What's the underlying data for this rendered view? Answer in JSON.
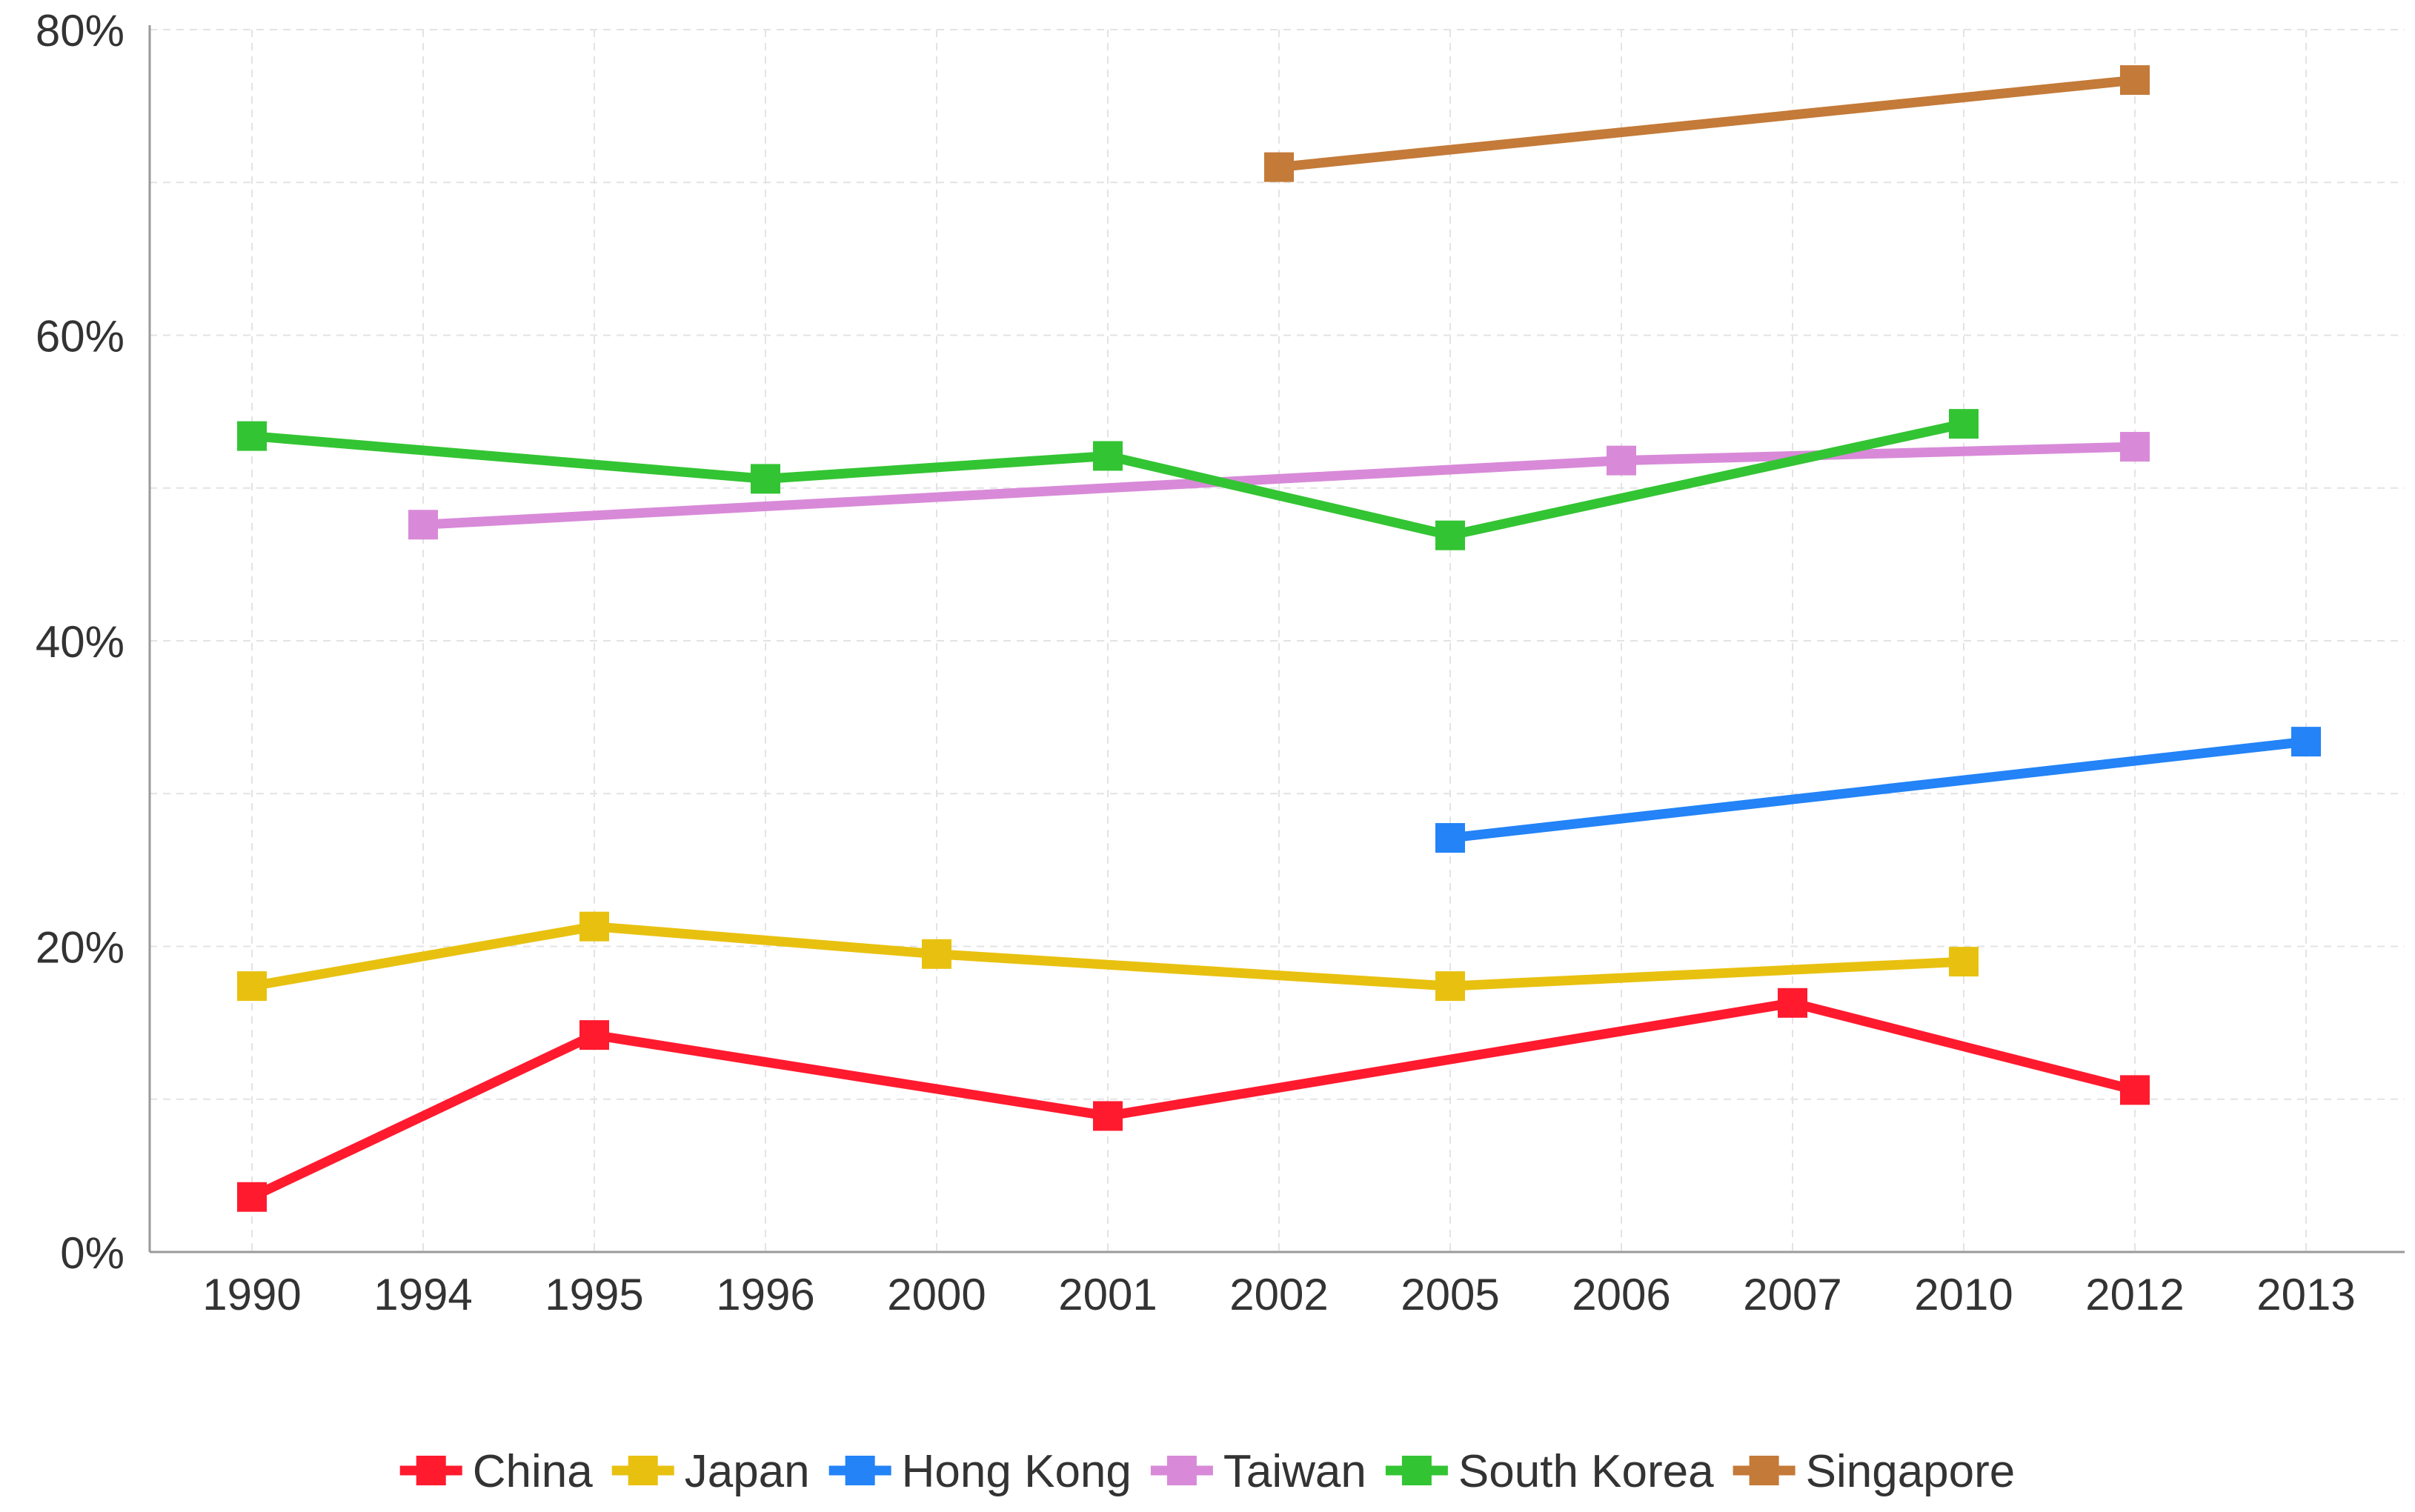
{
  "chart_data": {
    "type": "line",
    "title": "",
    "xlabel": "",
    "ylabel": "",
    "categories": [
      "1990",
      "1994",
      "1995",
      "1996",
      "2000",
      "2001",
      "2002",
      "2005",
      "2006",
      "2007",
      "2010",
      "2012",
      "2013"
    ],
    "y_ticks": [
      "0%",
      "20%",
      "40%",
      "60%",
      "80%"
    ],
    "ylim": [
      0,
      80
    ],
    "grid": true,
    "legend_position": "bottom",
    "series": [
      {
        "name": "China",
        "color": "#ff1a2e",
        "points": [
          [
            "1990",
            3.6
          ],
          [
            "1995",
            14.2
          ],
          [
            "2001",
            8.9
          ],
          [
            "2007",
            16.3
          ],
          [
            "2012",
            10.6
          ]
        ]
      },
      {
        "name": "Japan",
        "color": "#e8c110",
        "points": [
          [
            "1990",
            17.4
          ],
          [
            "1995",
            21.3
          ],
          [
            "2000",
            19.5
          ],
          [
            "2005",
            17.4
          ],
          [
            "2010",
            19.0
          ]
        ]
      },
      {
        "name": "Hong Kong",
        "color": "#2383f7",
        "points": [
          [
            "2005",
            27.1
          ],
          [
            "2013",
            33.4
          ]
        ]
      },
      {
        "name": "Taiwan",
        "color": "#d88ad8",
        "points": [
          [
            "1994",
            47.6
          ],
          [
            "2006",
            51.8
          ],
          [
            "2012",
            52.7
          ]
        ]
      },
      {
        "name": "South Korea",
        "color": "#33c433",
        "points": [
          [
            "1990",
            53.4
          ],
          [
            "1996",
            50.6
          ],
          [
            "2001",
            52.1
          ],
          [
            "2005",
            46.9
          ],
          [
            "2010",
            54.2
          ]
        ]
      },
      {
        "name": "Singapore",
        "color": "#c47a38",
        "points": [
          [
            "2002",
            71.0
          ],
          [
            "2012",
            76.7
          ]
        ]
      }
    ]
  }
}
